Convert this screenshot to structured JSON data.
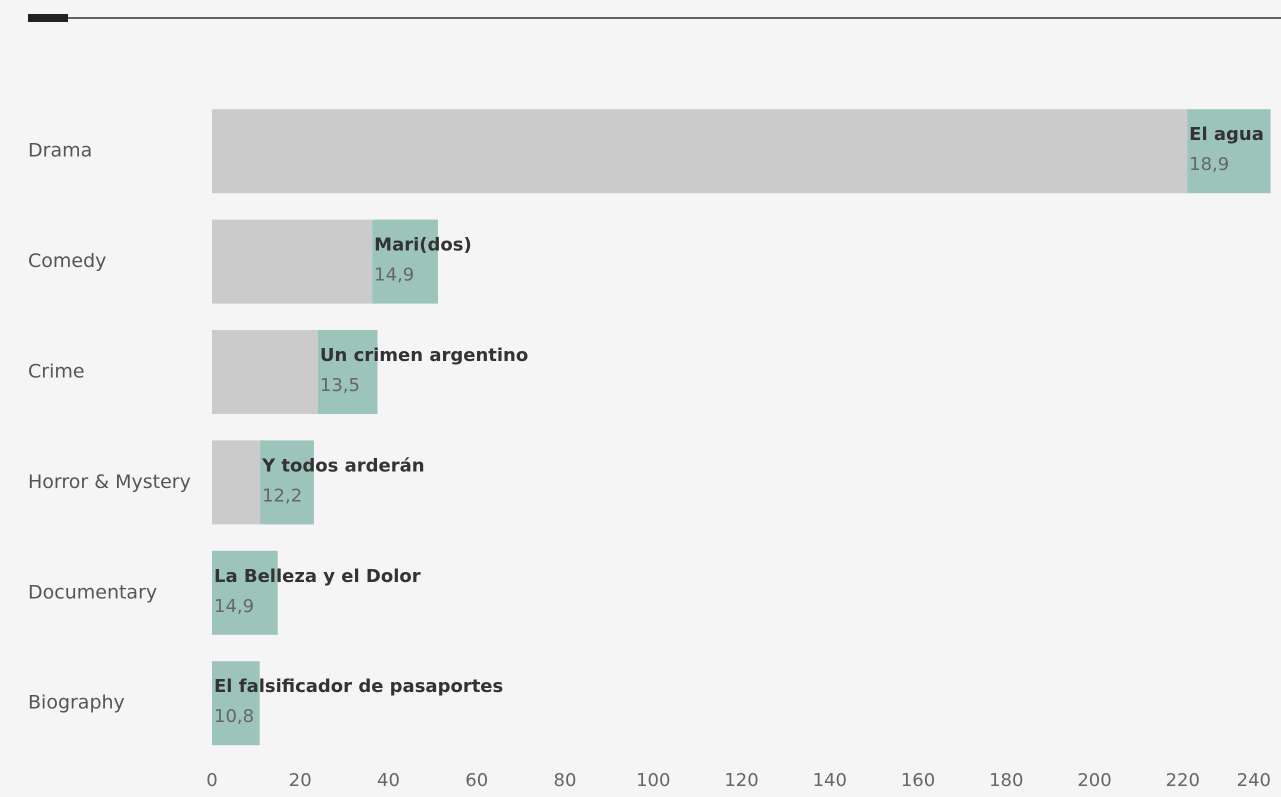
{
  "chart_data": {
    "type": "bar",
    "categories": [
      "Drama",
      "Comedy",
      "Crime",
      "Horror & Mystery",
      "Documentary",
      "Biography"
    ],
    "series": [
      {
        "color": "#cbcbcb",
        "values": [
          221,
          36.3,
          24,
          10.9,
          0,
          0
        ]
      },
      {
        "color": "#9cc4bb",
        "values": [
          18.9,
          14.9,
          13.5,
          12.2,
          14.9,
          10.8
        ],
        "value_labels": [
          "18,9",
          "14,9",
          "13,5",
          "12,2",
          "14,9",
          "10,8"
        ],
        "annotations": [
          "El agua",
          "Mari(dos)",
          "Un crimen argentino",
          "Y todos arderán",
          "La Belleza y el Dolor",
          "El falsificador de pasaportes"
        ]
      }
    ],
    "xlim": [
      0,
      240
    ],
    "xticks": [
      0,
      20,
      40,
      60,
      80,
      100,
      120,
      140,
      160,
      180,
      200,
      220,
      240
    ]
  }
}
